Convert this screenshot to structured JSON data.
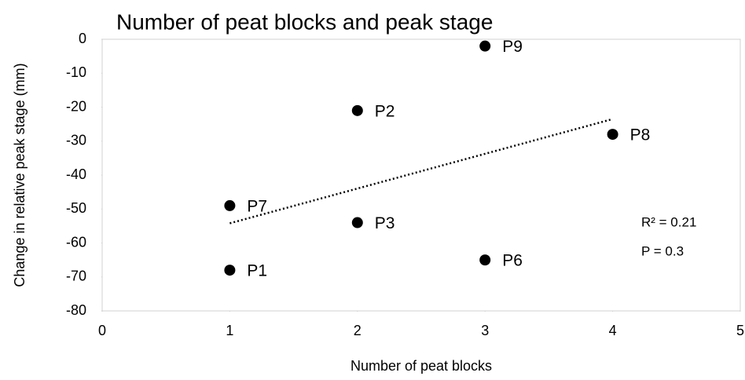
{
  "chart_data": {
    "type": "scatter",
    "title": "Number of peat blocks and peak stage",
    "x_label": "Number of peat blocks",
    "y_label": "Change in relative peak stage (mm)",
    "series": [
      {
        "name": null,
        "color": "#000000",
        "x": [
          1,
          1,
          2,
          2,
          3,
          3,
          4
        ],
        "values": [
          -68,
          -49,
          -21,
          -54,
          -2,
          -65,
          -28
        ],
        "labels": [
          "P1",
          "P7",
          "P2",
          "P3",
          "P9",
          "P6",
          "P8"
        ]
      }
    ],
    "trendline": {
      "x": [
        1,
        4
      ],
      "values": [
        -54.2,
        -23.5
      ]
    },
    "annotations": [
      "R² = 0.21",
      "P = 0.3"
    ],
    "xlim": [
      0,
      5
    ],
    "xticks": [
      0,
      1,
      2,
      3,
      4,
      5
    ],
    "ylim": [
      -80,
      0
    ],
    "yticks": [
      -80,
      -70,
      -60,
      -50,
      -40,
      -30,
      -20,
      -10,
      0
    ],
    "grid": false
  }
}
